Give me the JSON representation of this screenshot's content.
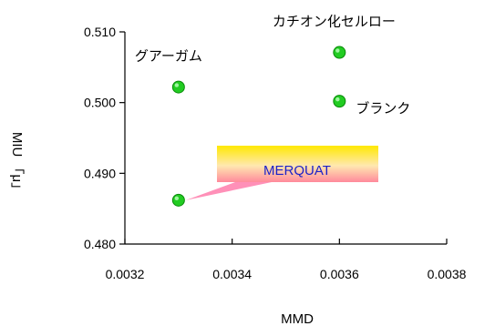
{
  "chart_data": {
    "type": "scatter",
    "xlabel": "MMD",
    "ylabel": "MIU 「μ」",
    "xlim": [
      0.0032,
      0.0038
    ],
    "ylim": [
      0.48,
      0.51
    ],
    "x_ticks": [
      "0.0032",
      "0.0034",
      "0.0036",
      "0.0038"
    ],
    "y_ticks": [
      "0.480",
      "0.490",
      "0.500",
      "0.510"
    ],
    "grid": false,
    "marker_color": "#22cc22",
    "points": [
      {
        "x": 0.0033,
        "y": 0.5022,
        "label": "グアーガム"
      },
      {
        "x": 0.0033,
        "y": 0.4862,
        "label": ""
      },
      {
        "x": 0.0036,
        "y": 0.5071,
        "label": "カチオン化セルロー"
      },
      {
        "x": 0.0036,
        "y": 0.5002,
        "label": "ブランク"
      }
    ],
    "callout": {
      "text": "MERQUAT",
      "points_to": 1
    }
  }
}
